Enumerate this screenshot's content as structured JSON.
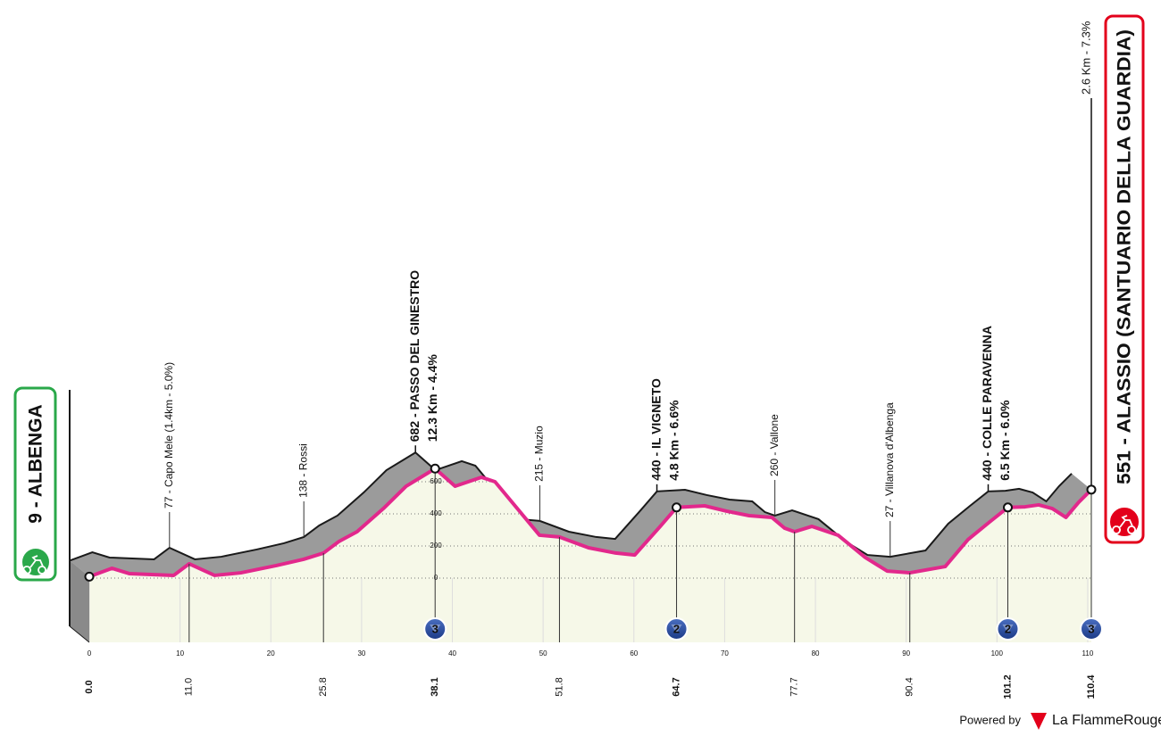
{
  "chart_data": {
    "type": "area",
    "start": "9 - ALBENGA",
    "finish": "551 - ALASSIO (SANTUARIO DELLA GUARDIA)",
    "x": [
      0,
      2.5,
      4.4,
      9.3,
      11,
      13.8,
      16.7,
      20.6,
      23.6,
      25.8,
      27.5,
      29.5,
      32.4,
      34.9,
      38.1,
      40.3,
      43.2,
      44.7,
      49.6,
      51.8,
      55,
      58,
      60.1,
      62.9,
      64.7,
      67.8,
      70.2,
      72.7,
      75.2,
      76.6,
      77.7,
      79.6,
      82.5,
      85.5,
      87.9,
      90.4,
      94.3,
      96.8,
      99.2,
      101.2,
      103.1,
      104.6,
      106.1,
      107.6,
      109,
      110.4
    ],
    "values": [
      9,
      61,
      28,
      17,
      89,
      17,
      33,
      78,
      117,
      156,
      228,
      289,
      433,
      572,
      682,
      572,
      628,
      600,
      267,
      256,
      189,
      156,
      144,
      322,
      440,
      450,
      417,
      389,
      378,
      311,
      289,
      322,
      267,
      128,
      44,
      33,
      72,
      239,
      350,
      440,
      444,
      456,
      433,
      378,
      472,
      551
    ],
    "color": "#e2288c",
    "xlim": [
      0,
      110.4
    ],
    "ylim": [
      -400,
      700
    ],
    "xticks": [
      0,
      10,
      20,
      30,
      40,
      50,
      60,
      70,
      80,
      90,
      100,
      110
    ],
    "yticks": [
      0,
      200,
      400,
      600
    ],
    "grid": true,
    "waypoints": [
      {
        "km": {
          "value": 0,
          "label": "0.0"
        },
        "bold": true
      },
      {
        "km": {
          "value": 11,
          "label": "11.0"
        },
        "name": "77 - Capo Mele (1.4km - 5.0%)",
        "bold": false
      },
      {
        "km": 25.8,
        "name": "138 - Rossi",
        "bold": false
      },
      {
        "km": 38.1,
        "name": "682 - PASSO DEL GINESTRO",
        "detail": "12.3 Km - 4.4%",
        "category": 3,
        "bold": true
      },
      {
        "km": 51.8,
        "name": "215 - Muzio",
        "bold": false
      },
      {
        "km": 64.7,
        "name": "440 - IL VIGNETO",
        "detail": "4.8 Km - 6.6%",
        "category": 2,
        "bold": true
      },
      {
        "km": 77.7,
        "name": "260 - Vallone",
        "bold": false
      },
      {
        "km": 90.4,
        "name": "27 - Villanova d'Albenga",
        "bold": false
      },
      {
        "km": 101.2,
        "name": "440 - COLLE PARAVENNA",
        "detail": "6.5 Km - 6.0%",
        "category": 2,
        "bold": true
      },
      {
        "km": 110.4,
        "detail": "2.6 Km - 7.3%",
        "category": 3,
        "bold": true
      }
    ],
    "footer": {
      "powered": "Powered by",
      "brand": "La FlammeRouge"
    }
  }
}
